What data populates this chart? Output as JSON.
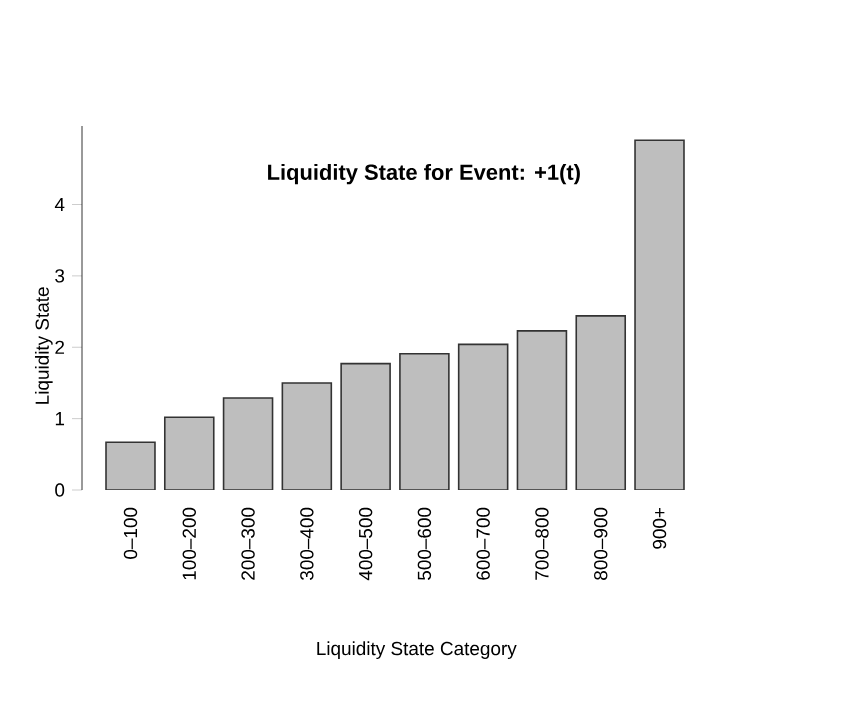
{
  "chart_data": {
    "type": "bar",
    "title": "Liquidity State for Event: +1(t)",
    "xlabel": "Liquidity State Category",
    "ylabel": "Liquidity State",
    "categories": [
      "0–100",
      "100–200",
      "200–300",
      "300–400",
      "400–500",
      "500–600",
      "600–700",
      "700–800",
      "800–900",
      "900+"
    ],
    "values": [
      0.67,
      1.02,
      1.29,
      1.5,
      1.77,
      1.91,
      2.04,
      2.23,
      2.44,
      4.9
    ],
    "color": "#bebebe",
    "ylim": [
      0,
      5.1
    ],
    "yticks": [
      0,
      1,
      2,
      3,
      4
    ],
    "grid": false
  }
}
